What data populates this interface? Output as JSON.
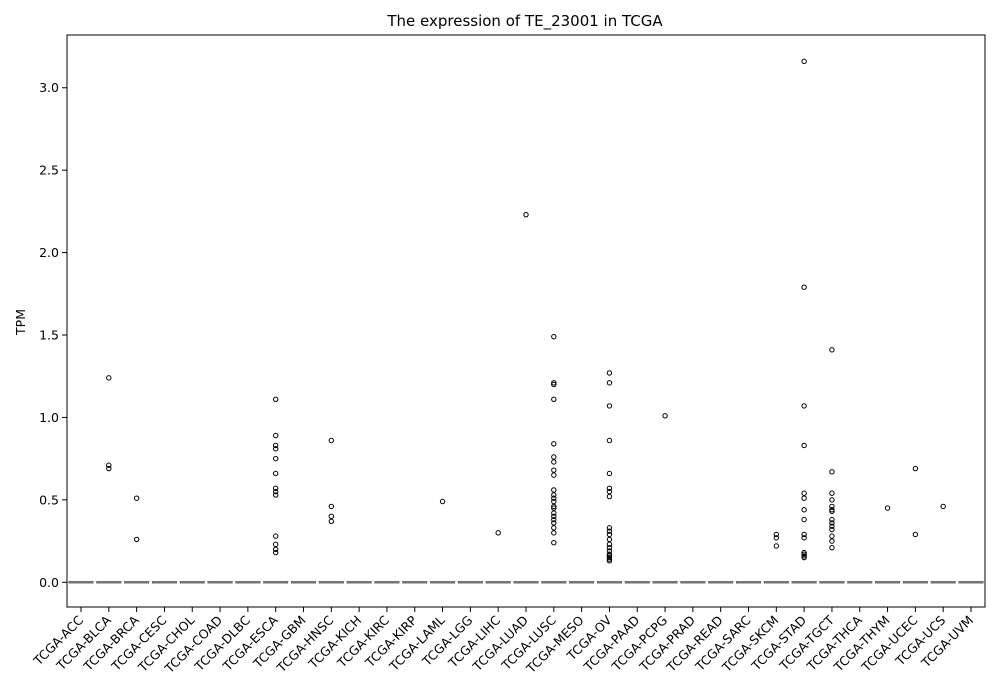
{
  "chart_data": {
    "type": "box",
    "title": "The expression of TE_23001 in TCGA",
    "xlabel": "",
    "ylabel": "TPM",
    "ylim": [
      -0.15,
      3.32
    ],
    "yticks": [
      "0.0",
      "0.5",
      "1.0",
      "1.5",
      "2.0",
      "2.5",
      "3.0"
    ],
    "grid": false,
    "categories": [
      "TCGA-ACC",
      "TCGA-BLCA",
      "TCGA-BRCA",
      "TCGA-CESC",
      "TCGA-CHOL",
      "TCGA-COAD",
      "TCGA-DLBC",
      "TCGA-ESCA",
      "TCGA-GBM",
      "TCGA-HNSC",
      "TCGA-KICH",
      "TCGA-KIRC",
      "TCGA-KIRP",
      "TCGA-LAML",
      "TCGA-LGG",
      "TCGA-LIHC",
      "TCGA-LUAD",
      "TCGA-LUSC",
      "TCGA-MESO",
      "TCGA-OV",
      "TCGA-PAAD",
      "TCGA-PCPG",
      "TCGA-PRAD",
      "TCGA-READ",
      "TCGA-SARC",
      "TCGA-SKCM",
      "TCGA-STAD",
      "TCGA-TGCT",
      "TCGA-THCA",
      "TCGA-THYM",
      "TCGA-UCEC",
      "TCGA-UCS",
      "TCGA-UVM"
    ],
    "median": [
      0,
      0,
      0,
      0,
      0,
      0,
      0,
      0,
      0,
      0,
      0,
      0,
      0,
      0,
      0,
      0,
      0,
      0,
      0,
      0,
      0,
      0,
      0,
      0,
      0,
      0,
      0,
      0,
      0,
      0,
      0,
      0,
      0
    ],
    "outliers": [
      [],
      [
        1.24,
        0.71,
        0.69
      ],
      [
        0.51,
        0.26
      ],
      [],
      [],
      [],
      [],
      [
        1.11,
        0.89,
        0.83,
        0.81,
        0.75,
        0.66,
        0.57,
        0.55,
        0.53,
        0.28,
        0.23,
        0.2,
        0.18
      ],
      [],
      [
        0.86,
        0.46,
        0.4,
        0.37
      ],
      [],
      [],
      [],
      [
        0.49
      ],
      [],
      [
        0.3
      ],
      [
        2.23
      ],
      [
        1.49,
        1.21,
        1.2,
        1.11,
        0.84,
        0.76,
        0.73,
        0.68,
        0.65,
        0.56,
        0.53,
        0.51,
        0.49,
        0.46,
        0.45,
        0.42,
        0.4,
        0.38,
        0.36,
        0.33,
        0.3,
        0.24
      ],
      [],
      [
        1.27,
        1.21,
        1.07,
        0.86,
        0.66,
        0.57,
        0.55,
        0.52,
        0.33,
        0.31,
        0.29,
        0.26,
        0.23,
        0.21,
        0.19,
        0.17,
        0.16,
        0.15,
        0.14,
        0.13
      ],
      [],
      [
        1.01
      ],
      [],
      [],
      [],
      [
        0.29,
        0.27,
        0.22
      ],
      [
        3.16,
        1.79,
        1.07,
        0.83,
        0.54,
        0.51,
        0.44,
        0.38,
        0.29,
        0.27,
        0.18,
        0.17,
        0.16,
        0.15
      ],
      [
        1.41,
        0.67,
        0.54,
        0.5,
        0.46,
        0.44,
        0.43,
        0.38,
        0.36,
        0.34,
        0.32,
        0.28,
        0.25,
        0.21
      ],
      [],
      [
        0.45
      ],
      [
        0.69,
        0.29
      ],
      [
        0.46
      ],
      []
    ],
    "colors": {
      "box_line": "#3a3a3a",
      "median_line": "#8c8c8c",
      "outlier_edge": "#000000",
      "axis": "#000000"
    }
  }
}
